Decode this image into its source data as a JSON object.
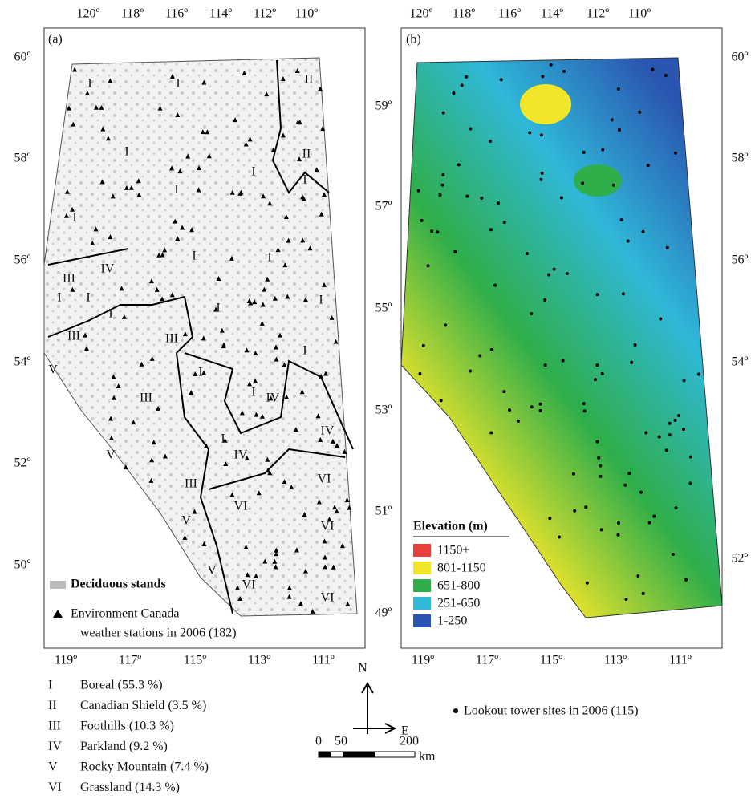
{
  "panel_a": {
    "label": "(a)",
    "top_ticks": [
      "120º",
      "118º",
      "116º",
      "114º",
      "112º",
      "110º"
    ],
    "left_ticks": [
      "60º",
      "58º",
      "56º",
      "54º",
      "52º",
      "50º"
    ],
    "bottom_ticks": [
      "119º",
      "117º",
      "115º",
      "113º",
      "111º"
    ],
    "region_labels": [
      "I",
      "I",
      "II",
      "I",
      "II",
      "I",
      "I",
      "I",
      "I",
      "I",
      "I",
      "I",
      "IV",
      "III",
      "I",
      "I",
      "I",
      "III",
      "III",
      "I",
      "I",
      "I",
      "IV",
      "III",
      "V",
      "I",
      "IV",
      "V",
      "IV",
      "VI",
      "VI",
      "III",
      "VI",
      "V",
      "V",
      "VI",
      "VI",
      "I"
    ],
    "legend": {
      "deciduous": "Deciduous stands",
      "stations": [
        "Environment Canada",
        "weather stations in 2006 (182)"
      ]
    }
  },
  "panel_b": {
    "label": "(b)",
    "top_ticks": [
      "120º",
      "118º",
      "116º",
      "114º",
      "112º",
      "110º"
    ],
    "left_ticks": [
      "59º",
      "57º",
      "55º",
      "53º",
      "51º",
      "49º"
    ],
    "right_ticks": [
      "60º",
      "58º",
      "56º",
      "54º",
      "52º"
    ],
    "bottom_ticks": [
      "119º",
      "117º",
      "115º",
      "113º",
      "111º"
    ],
    "elevation_legend": {
      "title": "Elevation (m)",
      "items": [
        {
          "label": "1150+",
          "color": "#e8413a"
        },
        {
          "label": "801-1150",
          "color": "#f2e62a"
        },
        {
          "label": "651-800",
          "color": "#2fae4a"
        },
        {
          "label": "251-650",
          "color": "#2fb8d8"
        },
        {
          "label": "1-250",
          "color": "#2a55b0"
        }
      ]
    }
  },
  "ecoregions": [
    {
      "numeral": "I",
      "name": "Boreal (55.3 %)"
    },
    {
      "numeral": "II",
      "name": "Canadian Shield (3.5 %)"
    },
    {
      "numeral": "III",
      "name": "Foothills (10.3 %)"
    },
    {
      "numeral": "IV",
      "name": "Parkland (9.2 %)"
    },
    {
      "numeral": "V",
      "name": "Rocky Mountain (7.4 %)"
    },
    {
      "numeral": "VI",
      "name": "Grassland (14.3 %)"
    }
  ],
  "compass": {
    "north": "N",
    "east": "E"
  },
  "scale_bar": {
    "labels": [
      "0",
      "50",
      "200"
    ],
    "unit": "km"
  },
  "towers_legend": "Lookout tower sites in 2006 (115)"
}
